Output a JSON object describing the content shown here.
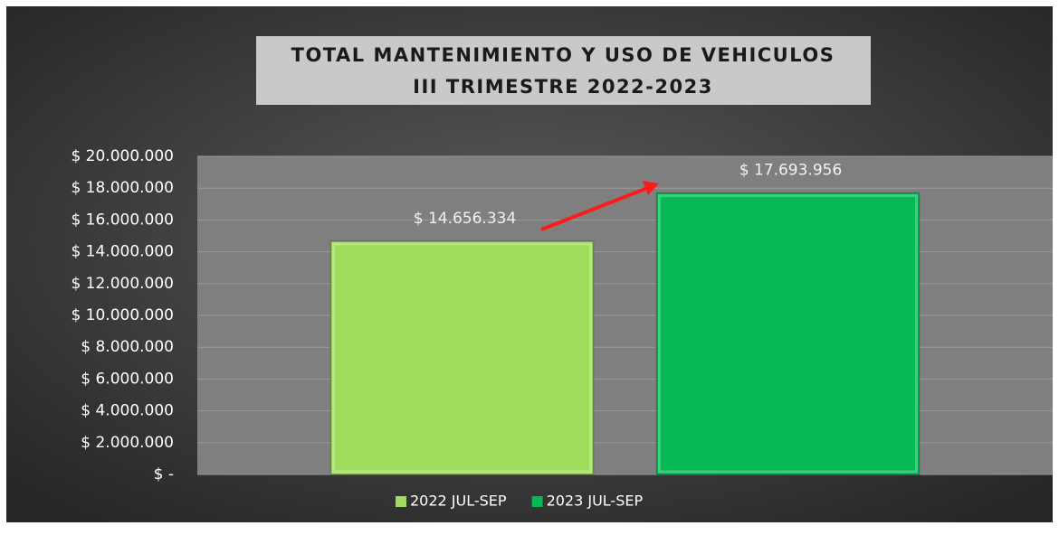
{
  "chart_data": {
    "type": "bar",
    "title": "TOTAL MANTENIMIENTO Y USO DE VEHICULOS",
    "subtitle": "III TRIMESTRE 2022-2023",
    "categories": [
      null
    ],
    "series": [
      {
        "name": "2022 JUL-SEP",
        "color": "#9fdc5c",
        "values": [
          14656334
        ],
        "value_labels": [
          "$ 14.656.334"
        ]
      },
      {
        "name": "2023 JUL-SEP",
        "color": "#05b853",
        "values": [
          17693956
        ],
        "value_labels": [
          "$ 17.693.956"
        ]
      }
    ],
    "ylim": [
      0,
      20000000
    ],
    "yticks": [
      {
        "value": 0,
        "label": "$ -"
      },
      {
        "value": 2000000,
        "label": "$ 2.000.000"
      },
      {
        "value": 4000000,
        "label": "$ 4.000.000"
      },
      {
        "value": 6000000,
        "label": "$ 6.000.000"
      },
      {
        "value": 8000000,
        "label": "$ 8.000.000"
      },
      {
        "value": 10000000,
        "label": "$ 10.000.000"
      },
      {
        "value": 12000000,
        "label": "$ 12.000.000"
      },
      {
        "value": 14000000,
        "label": "$ 14.000.000"
      },
      {
        "value": 16000000,
        "label": "$ 16.000.000"
      },
      {
        "value": 18000000,
        "label": "$ 18.000.000"
      },
      {
        "value": 20000000,
        "label": "$ 20.000.000"
      }
    ],
    "grid": true,
    "legend": "bottom"
  }
}
